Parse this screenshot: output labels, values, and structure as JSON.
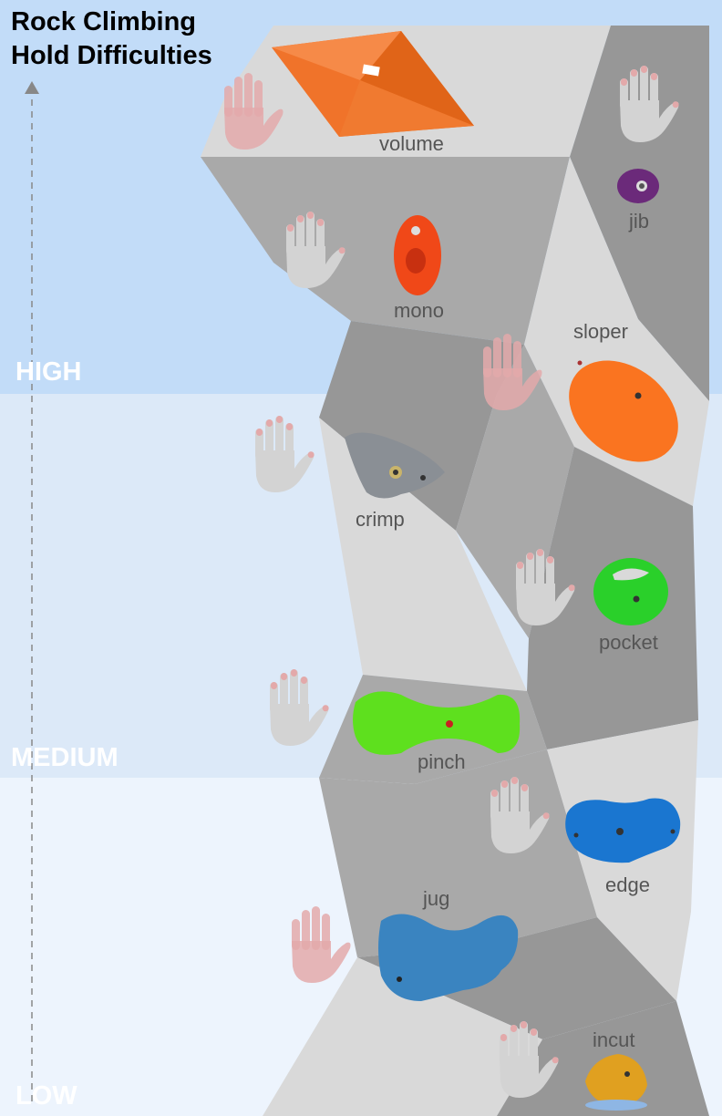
{
  "title": {
    "line1": "Rock Climbing",
    "line2": "Hold Difficulties"
  },
  "levels": {
    "high": "HIGH",
    "medium": "MEDIUM",
    "low": "LOW"
  },
  "colors": {
    "band_high": "#c2dcf8",
    "band_medium": "#dce9f8",
    "band_low": "#edf4fd",
    "wall_light": "#d9d9d9",
    "wall_mid": "#a9a9a9",
    "wall_dark": "#979797",
    "hand_gray": "#d3d3d3",
    "hand_pink": "#e3a9aa",
    "fingertip": "#e3a9aa",
    "arrow": "#888888"
  },
  "holds": [
    {
      "label": "volume",
      "color": "#f0732a",
      "hand": "pink"
    },
    {
      "label": "jib",
      "color": "#6b2a7a",
      "hand": "gray"
    },
    {
      "label": "mono",
      "color": "#f04818",
      "hand": "gray"
    },
    {
      "label": "sloper",
      "color": "#fa7420",
      "hand": "pink"
    },
    {
      "label": "crimp",
      "color": "#8a8f95",
      "hand": "gray"
    },
    {
      "label": "pocket",
      "color": "#2ad02a",
      "hand": "gray"
    },
    {
      "label": "pinch",
      "color": "#5ee01e",
      "hand": "gray"
    },
    {
      "label": "edge",
      "color": "#1a76d0",
      "hand": "gray"
    },
    {
      "label": "jug",
      "color": "#3a84c0",
      "hand": "pink"
    },
    {
      "label": "incut",
      "color": "#e0a020",
      "hand": "gray"
    }
  ]
}
